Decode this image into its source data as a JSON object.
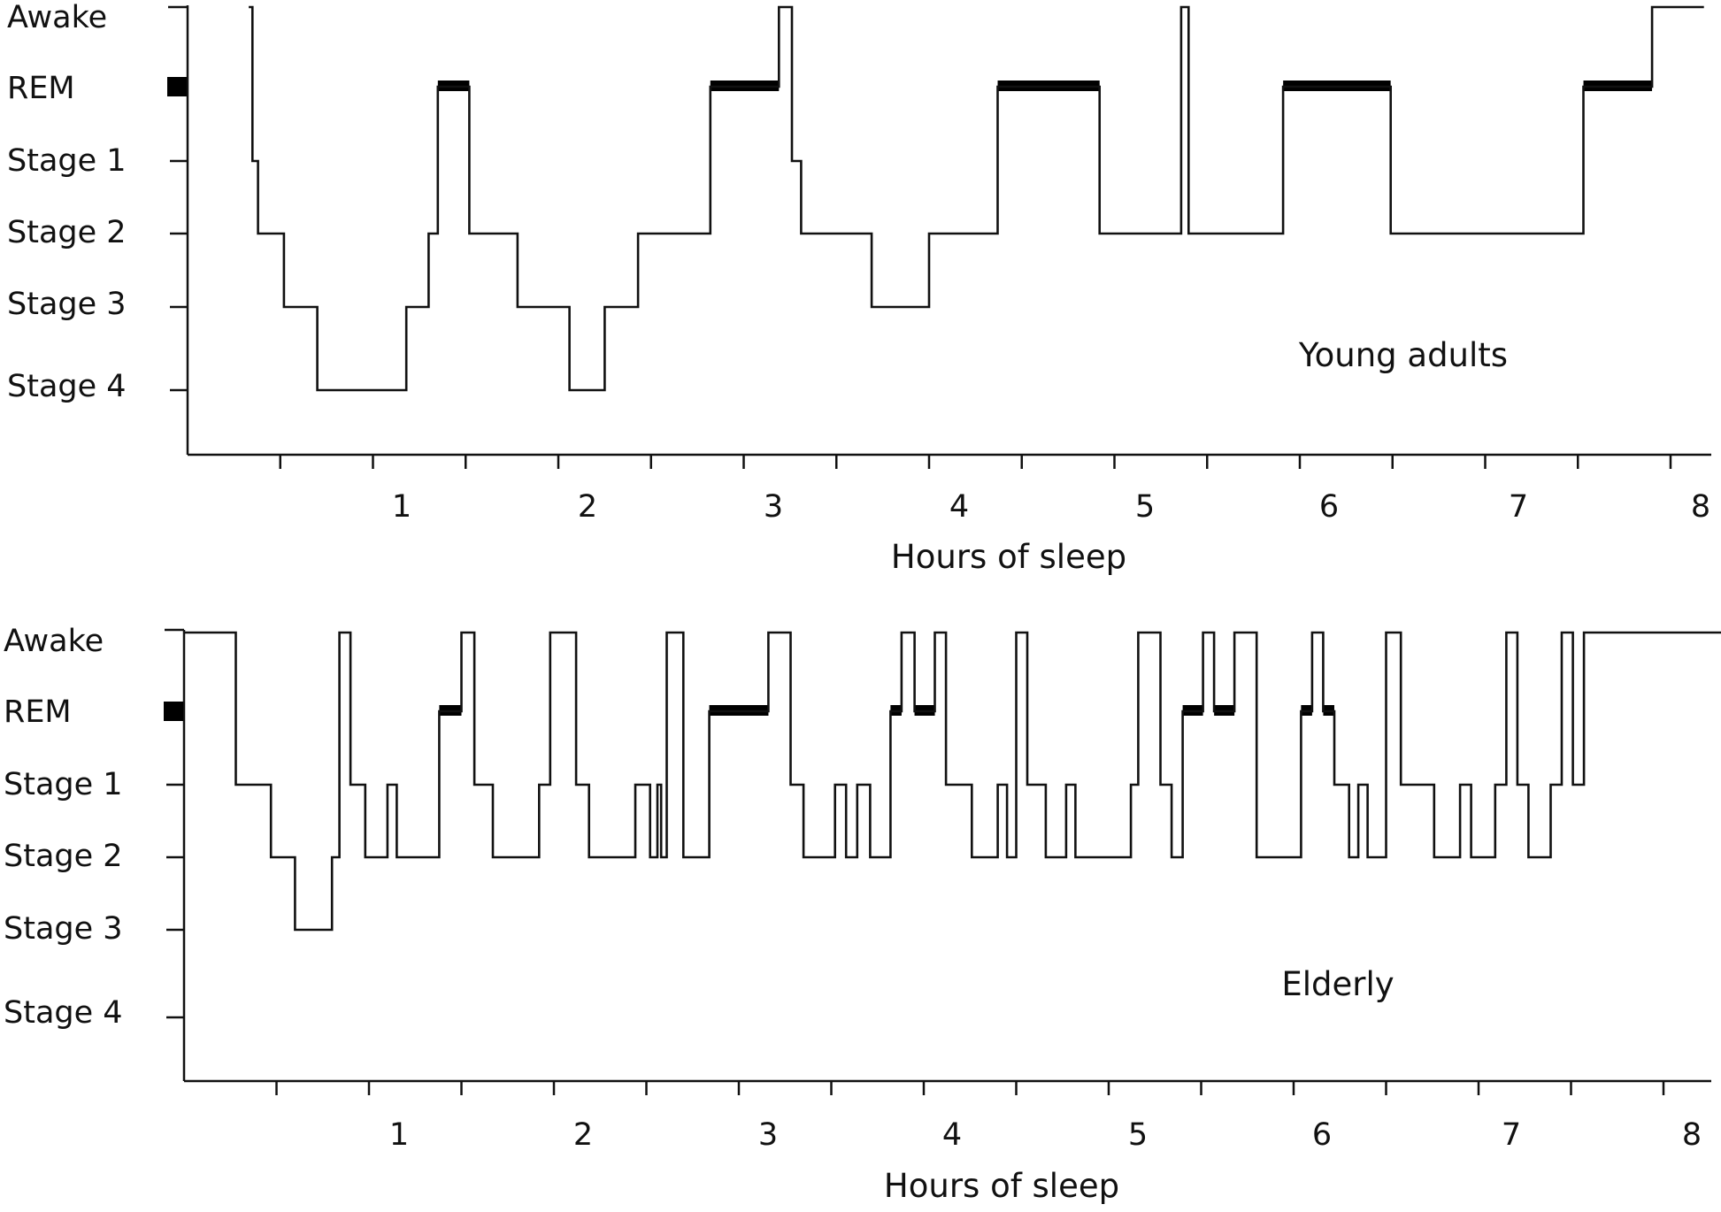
{
  "chart_data": [
    {
      "type": "line",
      "group_label": "Young adults",
      "xlabel": "Hours of sleep",
      "ylabel": "",
      "xlim": [
        0,
        8
      ],
      "x_ticks": [
        "1",
        "2",
        "3",
        "4",
        "5",
        "6",
        "7",
        "8"
      ],
      "y_categories": [
        "Awake",
        "REM",
        "Stage 1",
        "Stage 2",
        "Stage 3",
        "Stage 4"
      ],
      "line_color": "#111111",
      "rem_color": "#000000",
      "hypnogram": [
        {
          "t": 0.33,
          "stage": "Awake"
        },
        {
          "t": 0.35,
          "stage": "Stage 1"
        },
        {
          "t": 0.38,
          "stage": "Stage 2"
        },
        {
          "t": 0.52,
          "stage": "Stage 3"
        },
        {
          "t": 0.7,
          "stage": "Stage 4"
        },
        {
          "t": 1.18,
          "stage": "Stage 3"
        },
        {
          "t": 1.3,
          "stage": "Stage 2"
        },
        {
          "t": 1.35,
          "stage": "REM"
        },
        {
          "t": 1.52,
          "stage": "Stage 2"
        },
        {
          "t": 1.78,
          "stage": "Stage 3"
        },
        {
          "t": 2.06,
          "stage": "Stage 4"
        },
        {
          "t": 2.25,
          "stage": "Stage 3"
        },
        {
          "t": 2.43,
          "stage": "Stage 2"
        },
        {
          "t": 2.82,
          "stage": "REM"
        },
        {
          "t": 3.19,
          "stage": "Awake"
        },
        {
          "t": 3.26,
          "stage": "Stage 1"
        },
        {
          "t": 3.31,
          "stage": "Stage 2"
        },
        {
          "t": 3.69,
          "stage": "Stage 3"
        },
        {
          "t": 4.0,
          "stage": "Stage 2"
        },
        {
          "t": 4.37,
          "stage": "REM"
        },
        {
          "t": 4.92,
          "stage": "Stage 2"
        },
        {
          "t": 5.36,
          "stage": "Awake"
        },
        {
          "t": 5.4,
          "stage": "Stage 2"
        },
        {
          "t": 5.91,
          "stage": "REM"
        },
        {
          "t": 6.49,
          "stage": "Stage 2"
        },
        {
          "t": 7.53,
          "stage": "REM"
        },
        {
          "t": 7.9,
          "stage": "Awake"
        },
        {
          "t": 8.18,
          "stage": "Awake"
        }
      ]
    },
    {
      "type": "line",
      "group_label": "Elderly",
      "xlabel": "Hours of sleep",
      "ylabel": "",
      "xlim": [
        0,
        8
      ],
      "x_ticks": [
        "1",
        "2",
        "3",
        "4",
        "5",
        "6",
        "7",
        "8"
      ],
      "y_categories": [
        "Awake",
        "REM",
        "Stage 1",
        "Stage 2",
        "Stage 3",
        "Stage 4"
      ],
      "line_color": "#111111",
      "rem_color": "#000000",
      "hypnogram": [
        {
          "t": 0.0,
          "stage": "Awake"
        },
        {
          "t": 0.28,
          "stage": "Stage 1"
        },
        {
          "t": 0.47,
          "stage": "Stage 2"
        },
        {
          "t": 0.6,
          "stage": "Stage 3"
        },
        {
          "t": 0.8,
          "stage": "Stage 2"
        },
        {
          "t": 0.84,
          "stage": "Awake"
        },
        {
          "t": 0.9,
          "stage": "Stage 1"
        },
        {
          "t": 0.98,
          "stage": "Stage 2"
        },
        {
          "t": 1.1,
          "stage": "Stage 1"
        },
        {
          "t": 1.15,
          "stage": "Stage 2"
        },
        {
          "t": 1.38,
          "stage": "REM"
        },
        {
          "t": 1.5,
          "stage": "Awake"
        },
        {
          "t": 1.57,
          "stage": "Stage 1"
        },
        {
          "t": 1.67,
          "stage": "Stage 2"
        },
        {
          "t": 1.92,
          "stage": "Stage 1"
        },
        {
          "t": 1.98,
          "stage": "Awake"
        },
        {
          "t": 2.12,
          "stage": "Stage 1"
        },
        {
          "t": 2.19,
          "stage": "Stage 2"
        },
        {
          "t": 2.44,
          "stage": "Stage 1"
        },
        {
          "t": 2.52,
          "stage": "Stage 2"
        },
        {
          "t": 2.56,
          "stage": "Stage 1"
        },
        {
          "t": 2.58,
          "stage": "Stage 2"
        },
        {
          "t": 2.61,
          "stage": "Awake"
        },
        {
          "t": 2.7,
          "stage": "Stage 2"
        },
        {
          "t": 2.84,
          "stage": "REM"
        },
        {
          "t": 3.16,
          "stage": "Awake"
        },
        {
          "t": 3.28,
          "stage": "Stage 1"
        },
        {
          "t": 3.35,
          "stage": "Stage 2"
        },
        {
          "t": 3.52,
          "stage": "Stage 1"
        },
        {
          "t": 3.58,
          "stage": "Stage 2"
        },
        {
          "t": 3.64,
          "stage": "Stage 1"
        },
        {
          "t": 3.71,
          "stage": "Stage 2"
        },
        {
          "t": 3.82,
          "stage": "REM"
        },
        {
          "t": 3.88,
          "stage": "Awake"
        },
        {
          "t": 3.95,
          "stage": "REM"
        },
        {
          "t": 4.06,
          "stage": "Awake"
        },
        {
          "t": 4.12,
          "stage": "Stage 1"
        },
        {
          "t": 4.26,
          "stage": "Stage 2"
        },
        {
          "t": 4.4,
          "stage": "Stage 1"
        },
        {
          "t": 4.45,
          "stage": "Stage 2"
        },
        {
          "t": 4.5,
          "stage": "Awake"
        },
        {
          "t": 4.56,
          "stage": "Stage 1"
        },
        {
          "t": 4.66,
          "stage": "Stage 2"
        },
        {
          "t": 4.77,
          "stage": "Stage 1"
        },
        {
          "t": 4.82,
          "stage": "Stage 2"
        },
        {
          "t": 5.12,
          "stage": "Stage 1"
        },
        {
          "t": 5.16,
          "stage": "Awake"
        },
        {
          "t": 5.28,
          "stage": "Stage 1"
        },
        {
          "t": 5.34,
          "stage": "Stage 2"
        },
        {
          "t": 5.4,
          "stage": "REM"
        },
        {
          "t": 5.51,
          "stage": "Awake"
        },
        {
          "t": 5.57,
          "stage": "REM"
        },
        {
          "t": 5.68,
          "stage": "Awake"
        },
        {
          "t": 5.8,
          "stage": "Stage 2"
        },
        {
          "t": 6.04,
          "stage": "REM"
        },
        {
          "t": 6.1,
          "stage": "Awake"
        },
        {
          "t": 6.16,
          "stage": "REM"
        },
        {
          "t": 6.22,
          "stage": "Stage 1"
        },
        {
          "t": 6.3,
          "stage": "Stage 2"
        },
        {
          "t": 6.35,
          "stage": "Stage 1"
        },
        {
          "t": 6.4,
          "stage": "Stage 2"
        },
        {
          "t": 6.5,
          "stage": "Awake"
        },
        {
          "t": 6.58,
          "stage": "Stage 1"
        },
        {
          "t": 6.76,
          "stage": "Stage 2"
        },
        {
          "t": 6.9,
          "stage": "Stage 1"
        },
        {
          "t": 6.96,
          "stage": "Stage 2"
        },
        {
          "t": 7.09,
          "stage": "Stage 1"
        },
        {
          "t": 7.15,
          "stage": "Awake"
        },
        {
          "t": 7.21,
          "stage": "Stage 1"
        },
        {
          "t": 7.27,
          "stage": "Stage 2"
        },
        {
          "t": 7.39,
          "stage": "Stage 1"
        },
        {
          "t": 7.45,
          "stage": "Awake"
        },
        {
          "t": 7.51,
          "stage": "Stage 1"
        },
        {
          "t": 7.57,
          "stage": "Awake"
        },
        {
          "t": 8.35,
          "stage": "Awake"
        }
      ]
    }
  ]
}
